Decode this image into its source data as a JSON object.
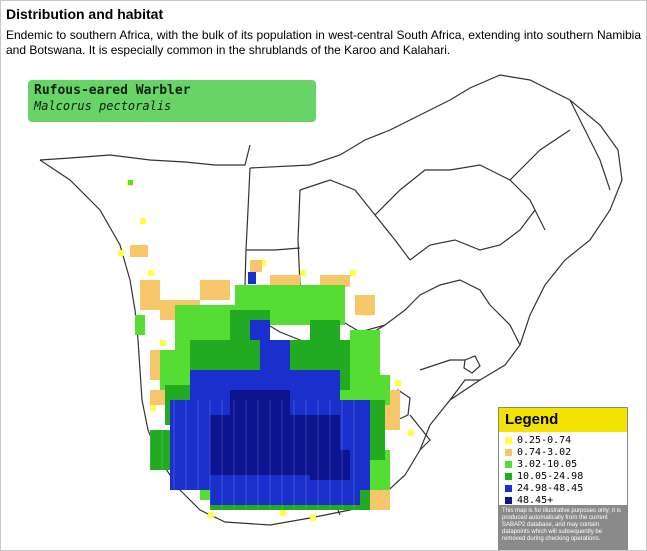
{
  "section": {
    "heading": "Distribution and habitat",
    "description": "Endemic to southern Africa, with the bulk of its population in west-central South Africa, extending into southern Namibia and Botswana. It is especially common in the shrublands of the Karoo and Kalahari."
  },
  "map": {
    "common_name": "Rufous-eared Warbler",
    "scientific_name": "Malcorus pectoralis",
    "legend": {
      "title": "Legend",
      "items": [
        {
          "label": "0.25-0.74",
          "color": "#ffff44"
        },
        {
          "label": "0.74-3.02",
          "color": "#f6c76a"
        },
        {
          "label": "3.02-10.05",
          "color": "#55dd33"
        },
        {
          "label": "10.05-24.98",
          "color": "#22aa22"
        },
        {
          "label": "24.98-48.45",
          "color": "#1a2fcc"
        },
        {
          "label": "48.45+",
          "color": "#0c1490"
        }
      ],
      "note": "This map is for illustrative purposes only; it is produced automatically from the current SABAP2 database, and may contain datapoints which will subsequently be removed during checking operations."
    },
    "colors": {
      "box": "#66d466",
      "legend_title_bg": "#f2e400"
    }
  }
}
